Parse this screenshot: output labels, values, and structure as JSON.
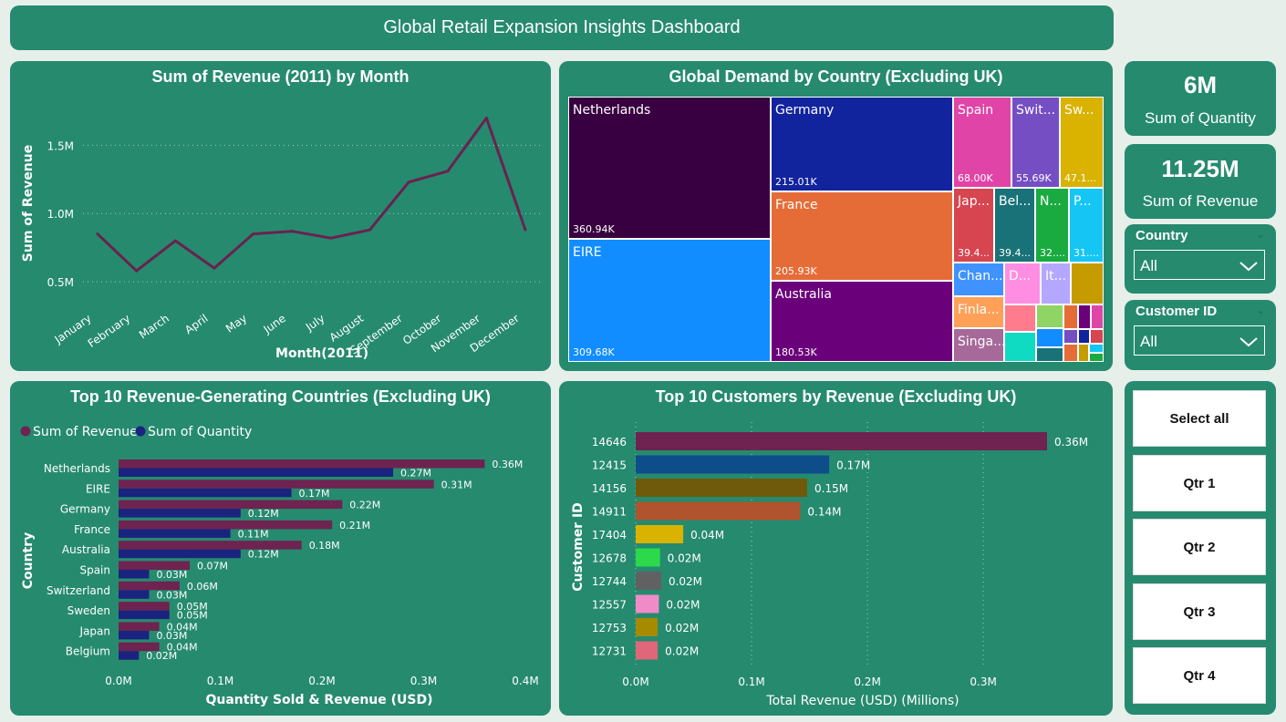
{
  "header": {
    "title": "Global Retail Expansion Insights Dashboard"
  },
  "cards": {
    "quantity": {
      "value": "6M",
      "label": "Sum of Quantity"
    },
    "revenue": {
      "value": "11.25M",
      "label": "Sum of Revenue"
    }
  },
  "slicers": {
    "country": {
      "title": "Country",
      "value": "All"
    },
    "customer": {
      "title": "Customer ID",
      "value": "All"
    }
  },
  "quarter_buttons": [
    "Select all",
    "Qtr 1",
    "Qtr 2",
    "Qtr 3",
    "Qtr 4"
  ],
  "colors": {
    "background": "#e6efe9",
    "panel": "#268a6f",
    "line": "#6a2150",
    "revenue_bar": "#6e2350",
    "quantity_bar": "#1a237e"
  },
  "chart_data": [
    {
      "id": "monthly",
      "type": "line",
      "title": "Sum of Revenue (2011) by Month",
      "xlabel": "Month(2011)",
      "ylabel": "Sum of Revenue",
      "categories": [
        "January",
        "February",
        "March",
        "April",
        "May",
        "June",
        "July",
        "August",
        "September",
        "October",
        "November",
        "December"
      ],
      "values": [
        0.85,
        0.58,
        0.8,
        0.6,
        0.85,
        0.87,
        0.82,
        0.88,
        1.23,
        1.31,
        1.7,
        0.88
      ],
      "value_unit": "M",
      "yticks": [
        "0.5M",
        "1.0M",
        "1.5M"
      ],
      "ytick_values": [
        0.5,
        1.0,
        1.5
      ],
      "ylim": [
        0.3,
        1.85
      ],
      "grid": true
    },
    {
      "id": "treemap",
      "type": "treemap",
      "title": "Global Demand by Country (Excluding UK)",
      "items": [
        {
          "name": "Netherlands",
          "value": "360.94K",
          "color": "#380040"
        },
        {
          "name": "EIRE",
          "value": "309.68K",
          "color": "#118dff"
        },
        {
          "name": "Germany",
          "value": "215.01K",
          "color": "#12239e"
        },
        {
          "name": "France",
          "value": "205.93K",
          "color": "#e66c37"
        },
        {
          "name": "Australia",
          "value": "180.53K",
          "color": "#6b007b"
        },
        {
          "name": "Spain",
          "value": "68.00K",
          "color": "#e044a7"
        },
        {
          "name": "Swit...",
          "value": "55.69K",
          "color": "#744ec2"
        },
        {
          "name": "Sw...",
          "value": "47.1...",
          "color": "#d9b300"
        },
        {
          "name": "Jap...",
          "value": "39.4...",
          "color": "#d64550"
        },
        {
          "name": "Bel...",
          "value": "39.4...",
          "color": "#197278"
        },
        {
          "name": "N...",
          "value": "32....",
          "color": "#1aab40"
        },
        {
          "name": "P...",
          "value": "31....",
          "color": "#15c6f4"
        },
        {
          "name": "Chan...",
          "value": "",
          "color": "#4092ff"
        },
        {
          "name": "D...",
          "value": "",
          "color": "#ff8ee2"
        },
        {
          "name": "It...",
          "value": "",
          "color": "#b4a7ff"
        },
        {
          "name": "",
          "value": "",
          "color": "#c59b00"
        },
        {
          "name": "Finla...",
          "value": "",
          "color": "#ffa058"
        },
        {
          "name": "",
          "value": "",
          "color": "#ff7b8e"
        },
        {
          "name": "",
          "value": "",
          "color": "#90d465"
        },
        {
          "name": "",
          "value": "",
          "color": "#e66c37"
        },
        {
          "name": "",
          "value": "",
          "color": "#6b007b"
        },
        {
          "name": "",
          "value": "",
          "color": "#e044a7"
        },
        {
          "name": "Singa...",
          "value": "",
          "color": "#a66999"
        },
        {
          "name": "",
          "value": "",
          "color": "#0fdbc3"
        },
        {
          "name": "",
          "value": "",
          "color": "#118dff"
        },
        {
          "name": "",
          "value": "",
          "color": "#744ec2"
        },
        {
          "name": "",
          "value": "",
          "color": "#12239e"
        },
        {
          "name": "",
          "value": "",
          "color": "#d64550"
        },
        {
          "name": "",
          "value": "",
          "color": "#197278"
        },
        {
          "name": "",
          "value": "",
          "color": "#e66c37"
        },
        {
          "name": "",
          "value": "",
          "color": "#c59b00"
        },
        {
          "name": "",
          "value": "",
          "color": "#15c6f4"
        },
        {
          "name": "",
          "value": "",
          "color": "#1aab40"
        },
        {
          "name": "",
          "value": "",
          "color": "#d9b300"
        }
      ]
    },
    {
      "id": "countries",
      "type": "bar",
      "orientation": "horizontal",
      "title": "Top 10 Revenue-Generating Countries (Excluding UK)",
      "xlabel": "Quantity Sold & Revenue (USD)",
      "ylabel": "Country",
      "legend_position": "top-left",
      "categories": [
        "Netherlands",
        "EIRE",
        "Germany",
        "France",
        "Australia",
        "Spain",
        "Switzerland",
        "Sweden",
        "Japan",
        "Belgium"
      ],
      "series": [
        {
          "name": "Sum of Revenue",
          "color": "#6e2350",
          "values": [
            0.36,
            0.31,
            0.22,
            0.21,
            0.18,
            0.07,
            0.06,
            0.05,
            0.04,
            0.04
          ],
          "labels": [
            "0.36M",
            "0.31M",
            "0.22M",
            "0.21M",
            "0.18M",
            "0.07M",
            "0.06M",
            "0.05M",
            "0.04M",
            "0.04M"
          ]
        },
        {
          "name": "Sum of Quantity",
          "color": "#1a237e",
          "values": [
            0.27,
            0.17,
            0.12,
            0.11,
            0.12,
            0.03,
            0.03,
            0.05,
            0.03,
            0.02
          ],
          "labels": [
            "0.27M",
            "0.17M",
            "0.12M",
            "0.11M",
            "0.12M",
            "0.03M",
            "0.03M",
            "0.05M",
            "0.03M",
            "0.02M"
          ]
        }
      ],
      "xticks": [
        "0.0M",
        "0.1M",
        "0.2M",
        "0.3M",
        "0.4M"
      ],
      "xtick_values": [
        0,
        0.1,
        0.2,
        0.3,
        0.4
      ],
      "xlim": [
        0,
        0.4
      ]
    },
    {
      "id": "customers",
      "type": "bar",
      "orientation": "horizontal",
      "title": "Top 10 Customers by Revenue (Excluding UK)",
      "xlabel": "Total Revenue (USD) (Millions)",
      "ylabel": "Customer ID",
      "categories": [
        "14646",
        "12415",
        "14156",
        "14911",
        "17404",
        "12678",
        "12744",
        "12557",
        "12753",
        "12731"
      ],
      "values": [
        0.355,
        0.167,
        0.148,
        0.142,
        0.041,
        0.021,
        0.022,
        0.02,
        0.019,
        0.019
      ],
      "labels": [
        "0.36M",
        "0.17M",
        "0.15M",
        "0.14M",
        "0.04M",
        "0.02M",
        "0.02M",
        "0.02M",
        "0.02M",
        "0.02M"
      ],
      "colors": [
        "#6e2350",
        "#0d4d8a",
        "#6e5a0a",
        "#b0532e",
        "#d9b300",
        "#2bd94a",
        "#616161",
        "#f08bc8",
        "#a68a00",
        "#e0667a"
      ],
      "xticks": [
        "0.0M",
        "0.1M",
        "0.2M",
        "0.3M"
      ],
      "xtick_values": [
        0,
        0.1,
        0.2,
        0.3
      ],
      "xlim": [
        0,
        0.355
      ],
      "grid": true
    }
  ]
}
